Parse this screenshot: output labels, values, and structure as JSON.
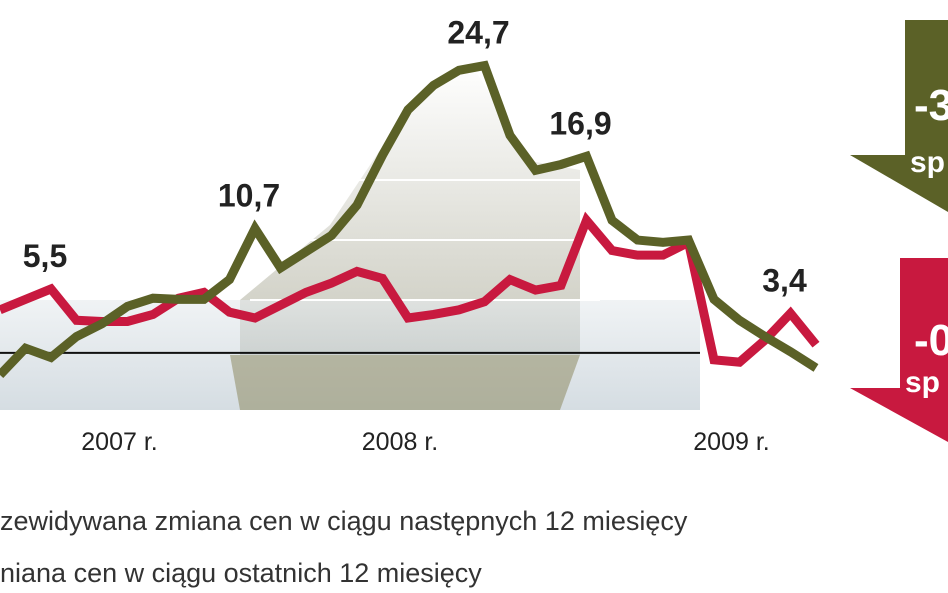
{
  "chart_data": {
    "type": "line",
    "categories": [
      null,
      null,
      null,
      null,
      null,
      "2007 r.",
      null,
      null,
      null,
      null,
      null,
      null,
      null,
      null,
      null,
      null,
      "2008 r.",
      null,
      null,
      null,
      null,
      null,
      null,
      null,
      null,
      null,
      null,
      null,
      null,
      "2009 r.",
      null,
      null,
      null
    ],
    "series": [
      {
        "name": "zewidywana zmiana cen w ciągu następnych 12 miesięcy",
        "color": "#5b6127",
        "values": [
          -1.9,
          0.4,
          -0.4,
          1.4,
          2.5,
          4.0,
          4.7,
          4.6,
          4.6,
          6.3,
          10.7,
          7.3,
          8.7,
          10.1,
          12.7,
          17.0,
          20.9,
          23.0,
          24.3,
          24.7,
          18.7,
          15.7,
          16.2,
          16.9,
          11.4,
          9.7,
          9.5,
          9.7,
          4.6,
          2.8,
          1.4,
          0.1,
          -1.3
        ],
        "value_labels": [
          null,
          null,
          null,
          null,
          null,
          null,
          null,
          null,
          null,
          null,
          "10,7",
          null,
          null,
          null,
          null,
          null,
          null,
          null,
          null,
          "24,7",
          null,
          null,
          null,
          "16,9",
          null,
          null,
          null,
          null,
          null,
          null,
          null,
          null,
          null
        ]
      },
      {
        "name": "niana cen w ciągu ostatnich 12 miesięcy",
        "color": "#c8193f",
        "values": [
          3.7,
          4.6,
          5.5,
          2.8,
          2.7,
          2.7,
          3.3,
          4.7,
          5.2,
          3.5,
          3.0,
          4.1,
          5.2,
          6.0,
          7.0,
          6.4,
          3.0,
          3.3,
          3.7,
          4.4,
          6.3,
          5.4,
          5.8,
          11.4,
          8.8,
          8.4,
          8.4,
          9.5,
          -0.6,
          -0.8,
          1.1,
          3.4,
          0.7
        ],
        "value_labels": [
          null,
          null,
          "5,5",
          null,
          null,
          null,
          null,
          null,
          null,
          null,
          null,
          null,
          null,
          null,
          null,
          null,
          null,
          null,
          null,
          null,
          null,
          null,
          null,
          null,
          null,
          null,
          null,
          null,
          null,
          null,
          null,
          "3,4",
          null
        ]
      }
    ],
    "ylim": [
      -5,
      30
    ],
    "annotations": [
      "-3",
      "sp",
      "-0",
      "sp"
    ]
  }
}
